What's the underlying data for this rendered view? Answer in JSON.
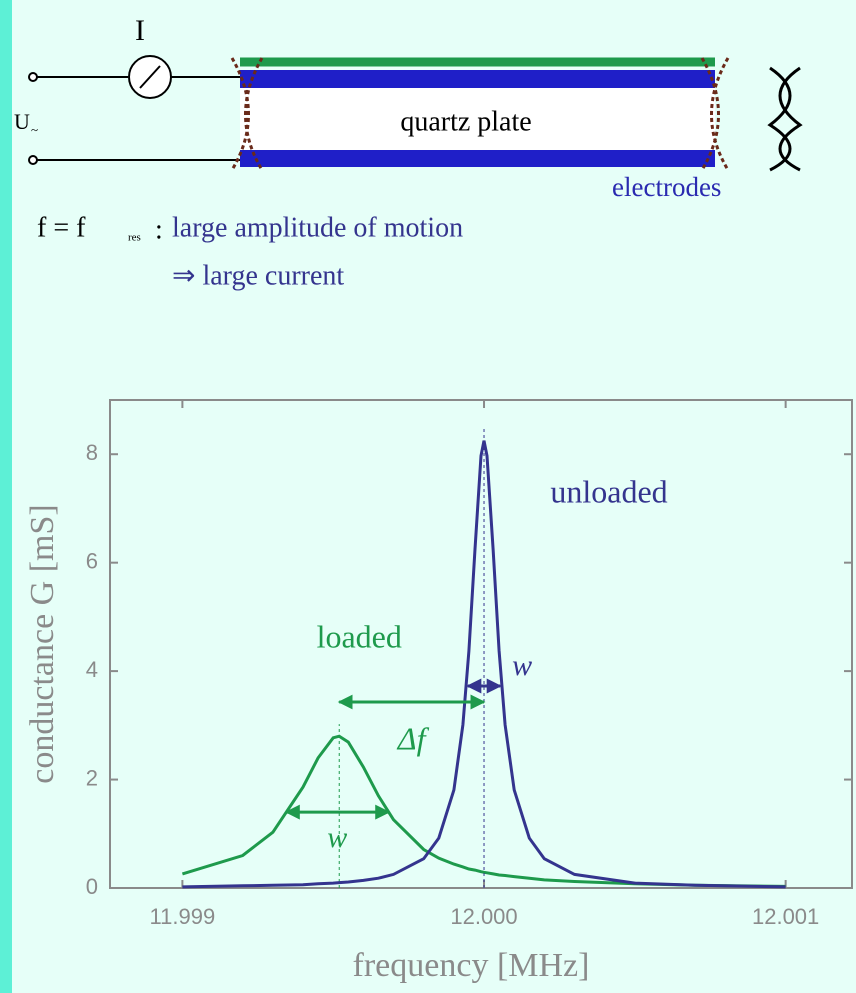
{
  "diagram": {
    "current_label": "I",
    "voltage_label": "U",
    "voltage_sub": "~",
    "plate_label": "quartz plate",
    "electrodes_label": "electrodes",
    "condition": "f = f",
    "condition_sub": "res",
    "separator": ":",
    "effect": "large amplitude of motion",
    "consequence": "⇒ large current"
  },
  "chart_data": {
    "type": "line",
    "xlabel": "frequency [MHz]",
    "ylabel": "conductance G [mS]",
    "xlim": [
      11.99876,
      12.00122
    ],
    "ylim": [
      0,
      9
    ],
    "xticks": [
      11.999,
      {
        "value": 12,
        "label": "12.000"
      },
      12.001
    ],
    "yticks": [
      0,
      2,
      4,
      6,
      8
    ],
    "x": [
      11.999,
      11.9992,
      11.9993,
      11.9994,
      11.99945,
      11.9995,
      11.99952,
      11.99955,
      11.9996,
      11.99965,
      11.9997,
      11.9998,
      11.99985,
      11.9999,
      11.99993,
      11.99995,
      11.99997,
      11.99999,
      12.0,
      12.00001,
      12.00003,
      12.00005,
      12.00007,
      12.0001,
      12.00015,
      12.0002,
      12.0003,
      12.0005,
      12.0007,
      12.001
    ],
    "series": [
      {
        "name": "loaded",
        "color": "#1e9a4c",
        "values": [
          0.26,
          0.6,
          1.03,
          1.86,
          2.4,
          2.77,
          2.8,
          2.69,
          2.23,
          1.7,
          1.26,
          0.71,
          0.55,
          0.44,
          0.39,
          0.35,
          0.33,
          0.3,
          0.29,
          0.28,
          0.26,
          0.24,
          0.23,
          0.21,
          0.18,
          0.15,
          0.12,
          0.08,
          0.05,
          0.03
        ]
      },
      {
        "name": "unloaded",
        "color": "#34348e",
        "values": [
          0.02,
          0.04,
          0.05,
          0.06,
          0.08,
          0.09,
          0.1,
          0.11,
          0.14,
          0.18,
          0.25,
          0.54,
          0.92,
          1.81,
          3.01,
          4.37,
          6.25,
          7.97,
          8.25,
          7.97,
          6.25,
          4.37,
          3.01,
          1.81,
          0.92,
          0.54,
          0.25,
          0.09,
          0.05,
          0.02
        ]
      }
    ],
    "annotations": [
      "w",
      "w",
      "Δf"
    ]
  }
}
